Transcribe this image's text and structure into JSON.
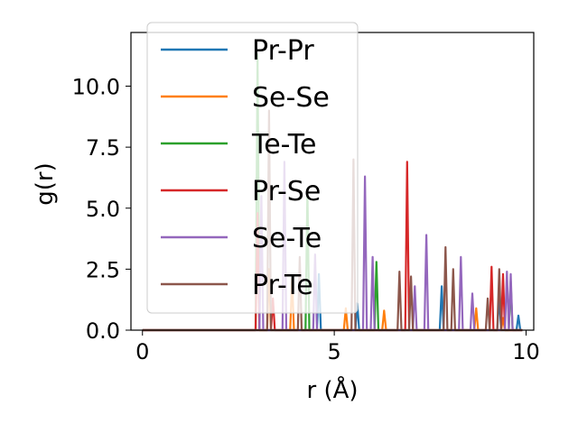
{
  "chart_data": {
    "type": "line",
    "xlabel": "r (Å)",
    "ylabel": "g(r)",
    "xlim": [
      -0.3,
      10.2
    ],
    "ylim": [
      0,
      12.2
    ],
    "xticks": [
      0,
      5,
      10
    ],
    "yticks": [
      0.0,
      2.5,
      5.0,
      7.5,
      10.0
    ],
    "xtick_labels": [
      "0",
      "5",
      "10"
    ],
    "ytick_labels": [
      "0.0",
      "2.5",
      "5.0",
      "7.5",
      "10.0"
    ],
    "legend_position": "top-left",
    "series": [
      {
        "name": "Pr-Pr",
        "color": "#1f77b4",
        "peaks": [
          [
            4.6,
            2.3
          ],
          [
            5.6,
            1.1
          ],
          [
            7.8,
            1.8
          ],
          [
            9.3,
            1.4
          ],
          [
            9.8,
            0.6
          ]
        ]
      },
      {
        "name": "Se-Se",
        "color": "#ff7f0e",
        "peaks": [
          [
            3.3,
            2.5
          ],
          [
            3.9,
            2.1
          ],
          [
            5.3,
            0.9
          ],
          [
            6.3,
            0.8
          ],
          [
            8.7,
            0.9
          ],
          [
            9.4,
            0.5
          ]
        ]
      },
      {
        "name": "Te-Te",
        "color": "#2ca02c",
        "peaks": [
          [
            3.0,
            11.3
          ],
          [
            4.3,
            5.8
          ],
          [
            6.1,
            2.8
          ],
          [
            9.6,
            2.0
          ]
        ]
      },
      {
        "name": "Pr-Se",
        "color": "#d62728",
        "peaks": [
          [
            3.0,
            4.8
          ],
          [
            3.4,
            1.3
          ],
          [
            6.9,
            6.9
          ],
          [
            9.1,
            2.6
          ],
          [
            9.4,
            2.3
          ]
        ]
      },
      {
        "name": "Se-Te",
        "color": "#9467bd",
        "peaks": [
          [
            3.1,
            5.5
          ],
          [
            3.7,
            6.9
          ],
          [
            4.5,
            3.1
          ],
          [
            5.8,
            6.3
          ],
          [
            6.0,
            3.0
          ],
          [
            7.1,
            1.8
          ],
          [
            7.4,
            3.9
          ],
          [
            8.3,
            3.0
          ],
          [
            8.6,
            1.5
          ],
          [
            9.5,
            2.4
          ],
          [
            9.6,
            2.3
          ]
        ]
      },
      {
        "name": "Pr-Te",
        "color": "#8c564b",
        "peaks": [
          [
            3.3,
            9.0
          ],
          [
            4.1,
            3.0
          ],
          [
            5.5,
            7.0
          ],
          [
            6.7,
            2.4
          ],
          [
            7.0,
            2.2
          ],
          [
            7.9,
            3.4
          ],
          [
            8.1,
            2.5
          ],
          [
            9.0,
            1.3
          ],
          [
            9.3,
            2.5
          ]
        ]
      }
    ]
  }
}
